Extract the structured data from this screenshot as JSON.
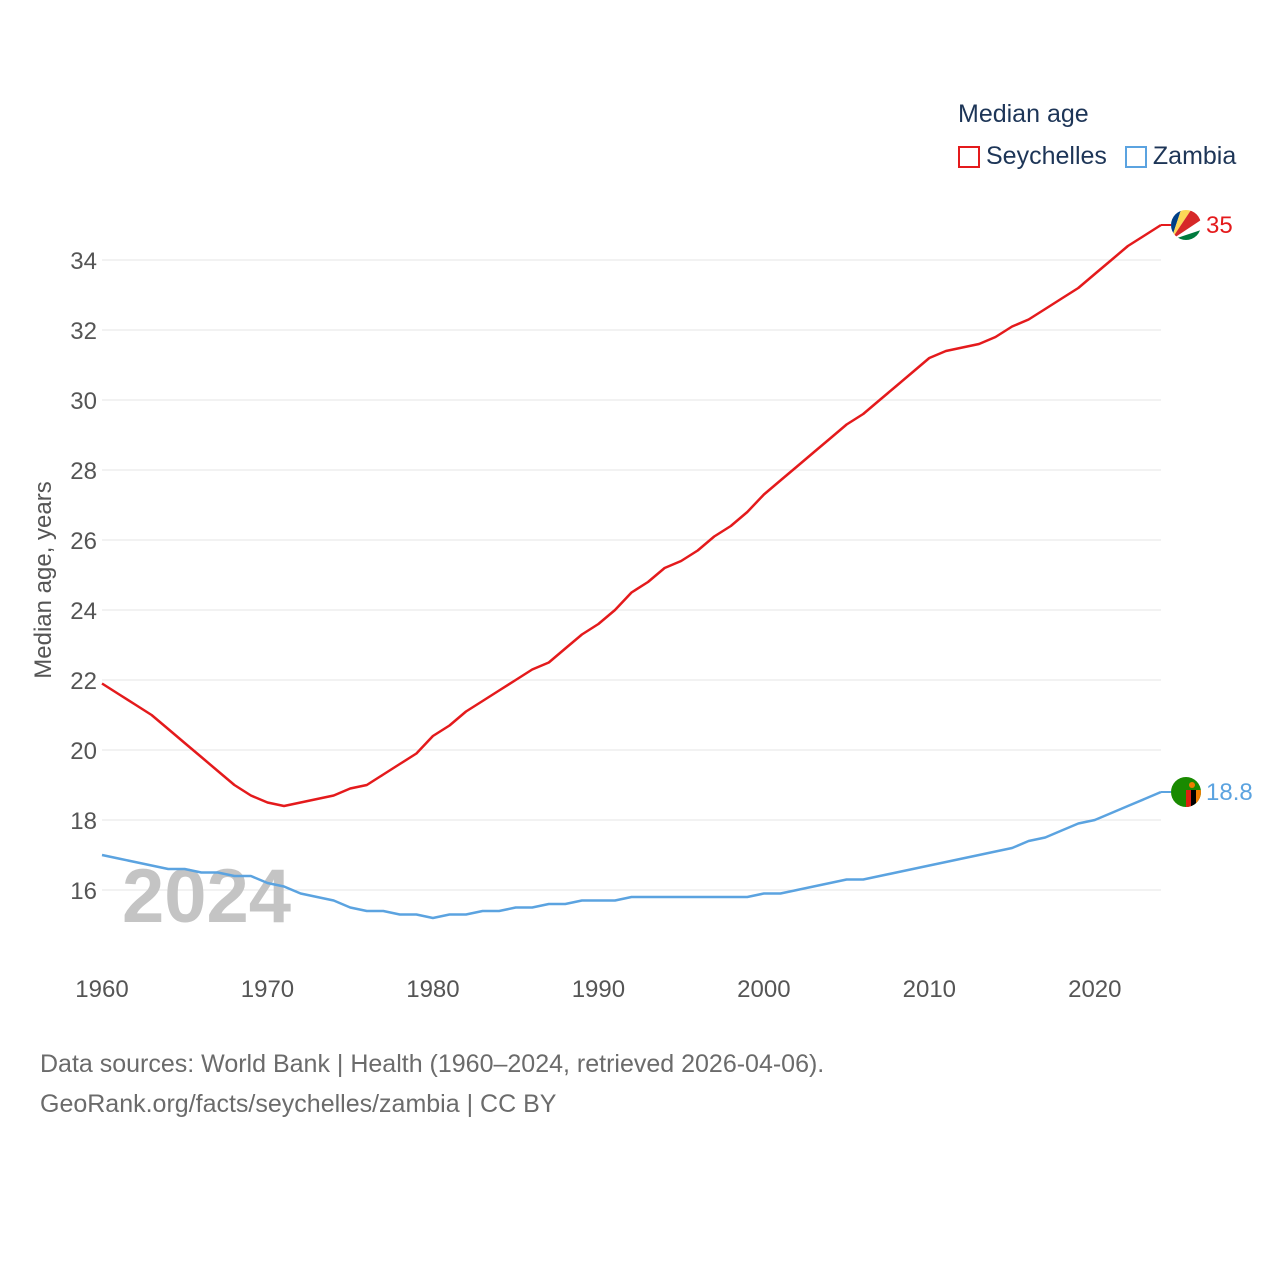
{
  "chart_data": {
    "type": "line",
    "legend_title": "Median age",
    "ylabel": "Median age, years",
    "year_label": "2024",
    "x_ticks": [
      1960,
      1970,
      1980,
      1990,
      2000,
      2010,
      2020
    ],
    "y_ticks": [
      16,
      18,
      20,
      22,
      24,
      26,
      28,
      30,
      32,
      34
    ],
    "xlim": [
      1960,
      2024
    ],
    "ylim": [
      14,
      36.2
    ],
    "grid": true,
    "series": [
      {
        "name": "Seychelles",
        "color": "#e41a1c",
        "end_label": "35",
        "flag_icon": "seychelles-flag-icon",
        "x": [
          1960,
          1961,
          1962,
          1963,
          1964,
          1965,
          1966,
          1967,
          1968,
          1969,
          1970,
          1971,
          1972,
          1973,
          1974,
          1975,
          1976,
          1977,
          1978,
          1979,
          1980,
          1981,
          1982,
          1983,
          1984,
          1985,
          1986,
          1987,
          1988,
          1989,
          1990,
          1991,
          1992,
          1993,
          1994,
          1995,
          1996,
          1997,
          1998,
          1999,
          2000,
          2001,
          2002,
          2003,
          2004,
          2005,
          2006,
          2007,
          2008,
          2009,
          2010,
          2011,
          2012,
          2013,
          2014,
          2015,
          2016,
          2017,
          2018,
          2019,
          2020,
          2021,
          2022,
          2023,
          2024
        ],
        "values": [
          21.9,
          21.6,
          21.3,
          21.0,
          20.6,
          20.2,
          19.8,
          19.4,
          19.0,
          18.7,
          18.5,
          18.4,
          18.5,
          18.6,
          18.7,
          18.9,
          19.0,
          19.3,
          19.6,
          19.9,
          20.4,
          20.7,
          21.1,
          21.4,
          21.7,
          22.0,
          22.3,
          22.5,
          22.9,
          23.3,
          23.6,
          24.0,
          24.5,
          24.8,
          25.2,
          25.4,
          25.7,
          26.1,
          26.4,
          26.8,
          27.3,
          27.7,
          28.1,
          28.5,
          28.9,
          29.3,
          29.6,
          30.0,
          30.4,
          30.8,
          31.2,
          31.4,
          31.5,
          31.6,
          31.8,
          32.1,
          32.3,
          32.6,
          32.9,
          33.2,
          33.6,
          34.0,
          34.4,
          34.7,
          35.0
        ]
      },
      {
        "name": "Zambia",
        "color": "#5ba3e0",
        "end_label": "18.8",
        "flag_icon": "zambia-flag-icon",
        "x": [
          1960,
          1961,
          1962,
          1963,
          1964,
          1965,
          1966,
          1967,
          1968,
          1969,
          1970,
          1971,
          1972,
          1973,
          1974,
          1975,
          1976,
          1977,
          1978,
          1979,
          1980,
          1981,
          1982,
          1983,
          1984,
          1985,
          1986,
          1987,
          1988,
          1989,
          1990,
          1991,
          1992,
          1993,
          1994,
          1995,
          1996,
          1997,
          1998,
          1999,
          2000,
          2001,
          2002,
          2003,
          2004,
          2005,
          2006,
          2007,
          2008,
          2009,
          2010,
          2011,
          2012,
          2013,
          2014,
          2015,
          2016,
          2017,
          2018,
          2019,
          2020,
          2021,
          2022,
          2023,
          2024
        ],
        "values": [
          17.0,
          16.9,
          16.8,
          16.7,
          16.6,
          16.6,
          16.5,
          16.5,
          16.4,
          16.4,
          16.2,
          16.1,
          15.9,
          15.8,
          15.7,
          15.5,
          15.4,
          15.4,
          15.3,
          15.3,
          15.2,
          15.3,
          15.3,
          15.4,
          15.4,
          15.5,
          15.5,
          15.6,
          15.6,
          15.7,
          15.7,
          15.7,
          15.8,
          15.8,
          15.8,
          15.8,
          15.8,
          15.8,
          15.8,
          15.8,
          15.9,
          15.9,
          16.0,
          16.1,
          16.2,
          16.3,
          16.3,
          16.4,
          16.5,
          16.6,
          16.7,
          16.8,
          16.9,
          17.0,
          17.1,
          17.2,
          17.4,
          17.5,
          17.7,
          17.9,
          18.0,
          18.2,
          18.4,
          18.6,
          18.8
        ]
      }
    ]
  },
  "footer": {
    "line1": "Data sources: World Bank | Health (1960–2024, retrieved 2026-04-06).",
    "line2": "GeoRank.org/facts/seychelles/zambia | CC BY"
  }
}
